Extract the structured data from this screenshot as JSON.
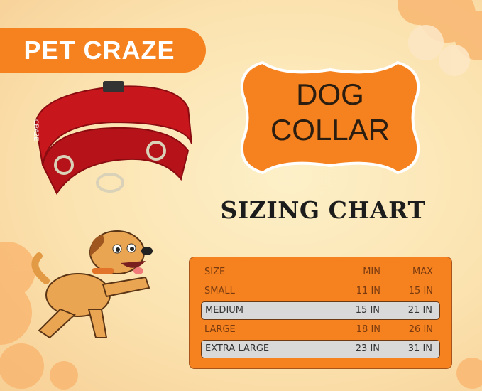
{
  "brand": {
    "name": "PET CRAZE"
  },
  "badge": {
    "line1": "DOG",
    "line2": "COLLAR"
  },
  "heading": "SIZING CHART",
  "table": {
    "headers": [
      "SIZE",
      "MIN",
      "MAX"
    ],
    "rows": [
      {
        "size": "SMALL",
        "min": "11 IN",
        "max": "15 IN",
        "highlight": false
      },
      {
        "size": "MEDIUM",
        "min": "15 IN",
        "max": "21 IN",
        "highlight": true
      },
      {
        "size": "LARGE",
        "min": "18 IN",
        "max": "26 IN",
        "highlight": false
      },
      {
        "size": "EXTRA LARGE",
        "min": "23 IN",
        "max": "31 IN",
        "highlight": true
      }
    ]
  },
  "colors": {
    "accent": "#f5821f",
    "collar": "#c8161d",
    "highlight_row": "#d9d9d9"
  },
  "collar_label": "CRAZE"
}
